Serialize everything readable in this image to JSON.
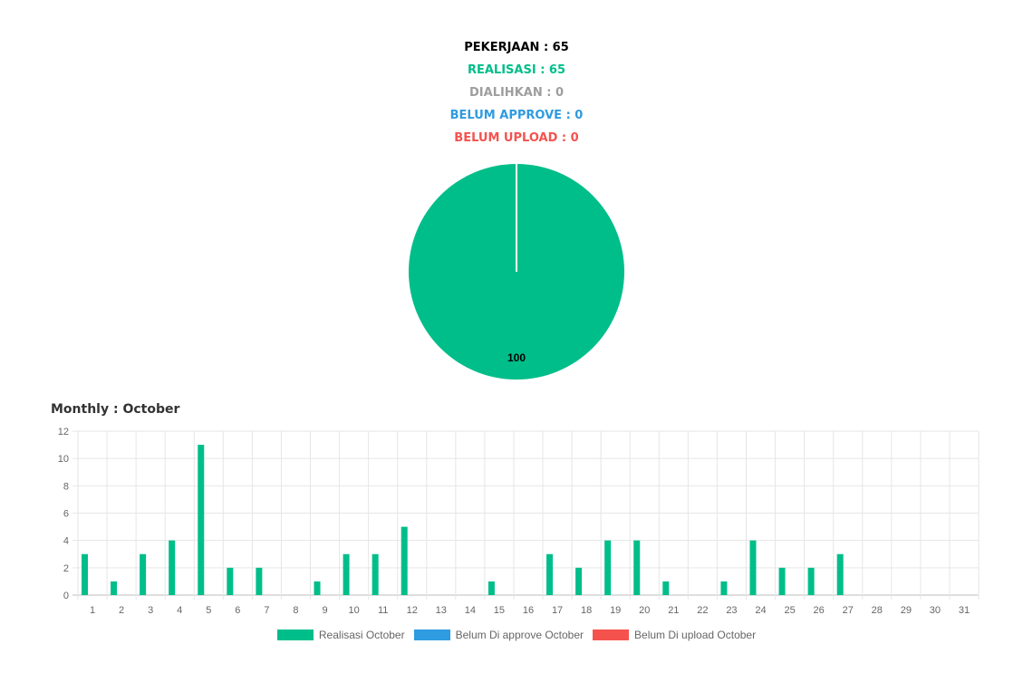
{
  "summary": {
    "pekerjaan": "PEKERJAAN : 65",
    "realisasi": "REALISASI : 65",
    "dialihkan": "DIALIHKAN : 0",
    "belum_approve": "BELUM APPROVE : 0",
    "belum_upload": "BELUM UPLOAD : 0"
  },
  "colors": {
    "pekerjaan": "#000000",
    "realisasi": "#00be8a",
    "dialihkan": "#9e9e9e",
    "belum_approve": "#2f9be0",
    "belum_upload": "#f5524e",
    "grid": "#e6e6e6",
    "axis_text": "#666666"
  },
  "monthly": {
    "title": "Monthly : October"
  },
  "chart_data": [
    {
      "type": "pie",
      "categories": [
        "Realisasi",
        "Dialihkan",
        "Belum Approve",
        "Belum Upload"
      ],
      "values": [
        100,
        0,
        0,
        0
      ],
      "data_labels": [
        "100"
      ]
    },
    {
      "type": "bar",
      "categories": [
        "1",
        "2",
        "3",
        "4",
        "5",
        "6",
        "7",
        "8",
        "9",
        "10",
        "11",
        "12",
        "13",
        "14",
        "15",
        "16",
        "17",
        "18",
        "19",
        "20",
        "21",
        "22",
        "23",
        "24",
        "25",
        "26",
        "27",
        "28",
        "29",
        "30",
        "31"
      ],
      "series": [
        {
          "name": "Realisasi October",
          "values": [
            3,
            1,
            3,
            4,
            11,
            2,
            2,
            0,
            1,
            3,
            3,
            5,
            0,
            0,
            1,
            0,
            3,
            2,
            4,
            4,
            1,
            0,
            1,
            4,
            2,
            2,
            3,
            0,
            0,
            0,
            0
          ]
        },
        {
          "name": "Belum Di approve October",
          "values": [
            0,
            0,
            0,
            0,
            0,
            0,
            0,
            0,
            0,
            0,
            0,
            0,
            0,
            0,
            0,
            0,
            0,
            0,
            0,
            0,
            0,
            0,
            0,
            0,
            0,
            0,
            0,
            0,
            0,
            0,
            0
          ]
        },
        {
          "name": "Belum Di upload October",
          "values": [
            0,
            0,
            0,
            0,
            0,
            0,
            0,
            0,
            0,
            0,
            0,
            0,
            0,
            0,
            0,
            0,
            0,
            0,
            0,
            0,
            0,
            0,
            0,
            0,
            0,
            0,
            0,
            0,
            0,
            0,
            0
          ]
        }
      ],
      "ylim": [
        0,
        12
      ],
      "yticks": [
        0,
        2,
        4,
        6,
        8,
        10,
        12
      ],
      "grid": true,
      "legend": "bottom"
    }
  ]
}
